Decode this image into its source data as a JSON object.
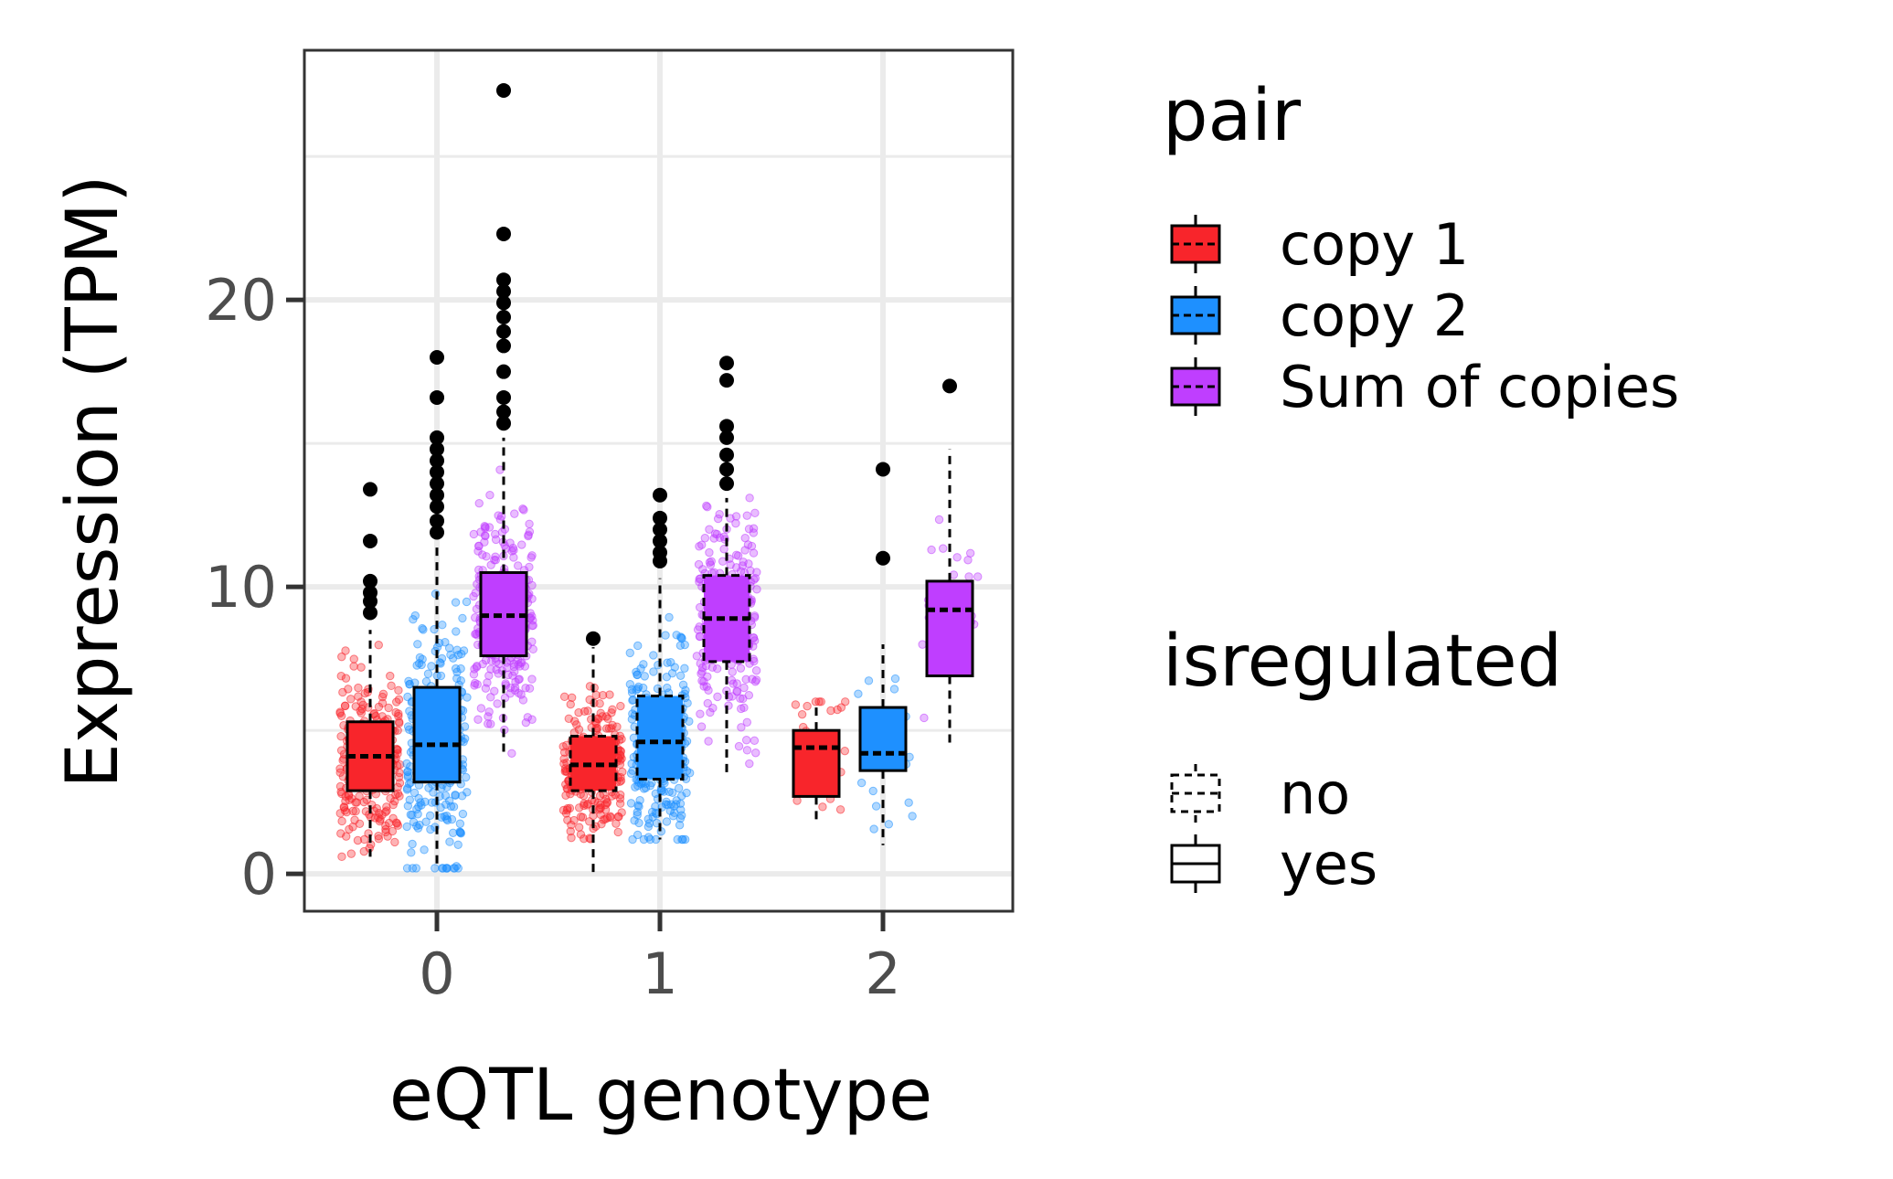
{
  "chart_data": {
    "type": "box",
    "xlabel": "eQTL genotype",
    "ylabel": "Expression (TPM)",
    "x_categories": [
      "0",
      "1",
      "2"
    ],
    "y_ticks": [
      "0",
      "10",
      "20"
    ],
    "ylim": [
      -1.3,
      28.7
    ],
    "grid": true,
    "legend_placement": "right",
    "legends": [
      {
        "title": "pair",
        "items": [
          {
            "label": "copy 1",
            "color": "#f8252b"
          },
          {
            "label": "copy 2",
            "color": "#1e90ff"
          },
          {
            "label": "Sum of copies",
            "color": "#bf3eff"
          }
        ]
      },
      {
        "title": "isregulated",
        "items": [
          {
            "label": "no",
            "linetype": "dashed"
          },
          {
            "label": "yes",
            "linetype": "solid"
          }
        ]
      }
    ],
    "series": [
      {
        "name": "copy 1",
        "color": "#f8252b",
        "boxes": [
          {
            "genotype": "0",
            "whisker_low": 0.6,
            "q1": 2.9,
            "median": 4.1,
            "q3": 5.3,
            "whisker_high": 8.5,
            "outliers": [
              9.1,
              9.5,
              9.8,
              10.2,
              11.6,
              13.4
            ]
          },
          {
            "genotype": "1",
            "whisker_low": 0.0,
            "q1": 2.9,
            "median": 3.8,
            "q3": 4.8,
            "whisker_high": 7.9,
            "outliers": [
              8.2
            ]
          },
          {
            "genotype": "2",
            "whisker_low": 1.9,
            "q1": 2.7,
            "median": 4.4,
            "q3": 5.0,
            "whisker_high": 6.0,
            "outliers": []
          }
        ]
      },
      {
        "name": "copy 2",
        "color": "#1e90ff",
        "boxes": [
          {
            "genotype": "0",
            "whisker_low": 0.2,
            "q1": 3.2,
            "median": 4.5,
            "q3": 6.5,
            "whisker_high": 11.4,
            "outliers": [
              11.9,
              12.3,
              12.8,
              13.2,
              13.6,
              14.0,
              14.4,
              14.8,
              15.2,
              16.6,
              18.0
            ]
          },
          {
            "genotype": "1",
            "whisker_low": 1.2,
            "q1": 3.3,
            "median": 4.6,
            "q3": 6.2,
            "whisker_high": 10.3,
            "outliers": [
              10.9,
              11.2,
              11.6,
              12.0,
              12.4,
              13.2
            ]
          },
          {
            "genotype": "2",
            "whisker_low": 1.0,
            "q1": 3.6,
            "median": 4.2,
            "q3": 5.8,
            "whisker_high": 8.0,
            "outliers": [
              11.0,
              14.1
            ]
          }
        ]
      },
      {
        "name": "Sum of copies",
        "color": "#bf3eff",
        "boxes": [
          {
            "genotype": "0",
            "whisker_low": 4.2,
            "q1": 7.6,
            "median": 9.0,
            "q3": 10.5,
            "whisker_high": 15.2,
            "outliers": [
              15.7,
              16.1,
              16.6,
              17.5,
              18.4,
              18.9,
              19.4,
              19.9,
              20.3,
              20.7,
              22.3,
              27.3
            ]
          },
          {
            "genotype": "1",
            "whisker_low": 3.5,
            "q1": 7.4,
            "median": 8.9,
            "q3": 10.4,
            "whisker_high": 13.1,
            "outliers": [
              13.6,
              14.1,
              14.6,
              15.2,
              15.6,
              17.2,
              17.8
            ]
          },
          {
            "genotype": "2",
            "whisker_low": 4.4,
            "q1": 6.9,
            "median": 9.2,
            "q3": 10.2,
            "whisker_high": 14.8,
            "outliers": [
              17.0
            ]
          }
        ]
      }
    ]
  }
}
